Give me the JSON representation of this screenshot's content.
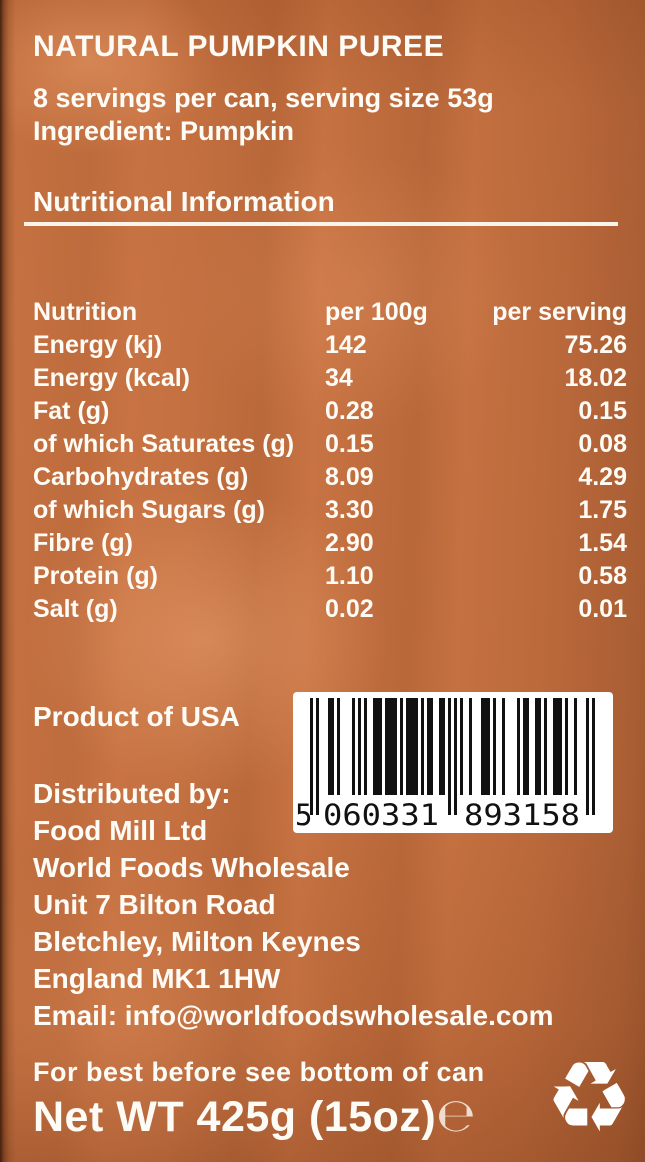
{
  "product": {
    "title": "NATURAL PUMPKIN PUREE",
    "servings_line": "8 servings per can, serving size 53g",
    "ingredient_line": "Ingredient: Pumpkin",
    "origin": "Product of USA",
    "best_before": "For best before see bottom of can",
    "net_weight": "Net WT 425g (15oz)",
    "estimated_sign": "℮"
  },
  "nutrition": {
    "heading": "Nutritional Information",
    "columns": {
      "name": "Nutrition",
      "per_100g": "per 100g",
      "per_serving": "per serving"
    },
    "rows": [
      {
        "name": "Energy (kj)",
        "per_100g": "142",
        "per_serving": "75.26"
      },
      {
        "name": "Energy (kcal)",
        "per_100g": "34",
        "per_serving": "18.02"
      },
      {
        "name": "Fat (g)",
        "per_100g": "0.28",
        "per_serving": "0.15"
      },
      {
        "name": "of which Saturates (g)",
        "per_100g": "0.15",
        "per_serving": "0.08"
      },
      {
        "name": "Carbohydrates (g)",
        "per_100g": "8.09",
        "per_serving": "4.29"
      },
      {
        "name": "of which Sugars (g)",
        "per_100g": "3.30",
        "per_serving": "1.75"
      },
      {
        "name": "Fibre (g)",
        "per_100g": "2.90",
        "per_serving": "1.54"
      },
      {
        "name": "Protein (g)",
        "per_100g": "1.10",
        "per_serving": "0.58"
      },
      {
        "name": "Salt (g)",
        "per_100g": "0.02",
        "per_serving": "0.01"
      }
    ]
  },
  "distributor": {
    "heading": "Distributed by:",
    "lines": [
      "Food Mill Ltd",
      "World Foods Wholesale",
      "Unit 7 Bilton Road",
      "Bletchley, Milton Keynes",
      "England MK1 1HW",
      "Email: info@worldfoodswholesale.com"
    ]
  },
  "barcode": {
    "value": "5060331893158",
    "first_digit": "5",
    "left_group": "060331",
    "right_group": "893158"
  },
  "icons": {
    "recycle_char": "♻"
  },
  "colors": {
    "background": "#c87343",
    "text": "#fdfbf6",
    "barcode_bg": "#ffffff",
    "barcode_bars": "#111111"
  }
}
